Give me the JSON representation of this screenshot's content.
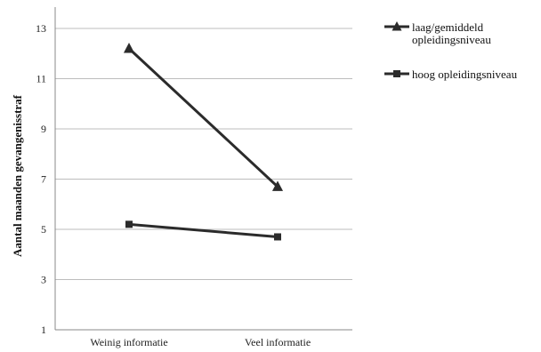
{
  "chart_data": {
    "type": "line",
    "categories": [
      "Weinig informatie",
      "Veel informatie"
    ],
    "series": [
      {
        "name": "laag/gemiddeld opleidingsniveau",
        "values": [
          12.2,
          6.7
        ],
        "marker": "triangle",
        "color": "#2b2b2b"
      },
      {
        "name": "hoog opleidingsniveau",
        "values": [
          5.2,
          4.7
        ],
        "marker": "square",
        "color": "#2b2b2b"
      }
    ],
    "legend_labels": [
      [
        "laag/gemiddeld",
        "opleidingsniveau"
      ],
      [
        "hoog opleidingsniveau"
      ]
    ],
    "title": "",
    "xlabel": "",
    "ylabel": "Aantal maanden gevangenisstraf",
    "ylim": [
      1,
      13
    ],
    "yticks": [
      1,
      3,
      5,
      7,
      9,
      11,
      13
    ],
    "grid": true,
    "legend_position": "right"
  }
}
